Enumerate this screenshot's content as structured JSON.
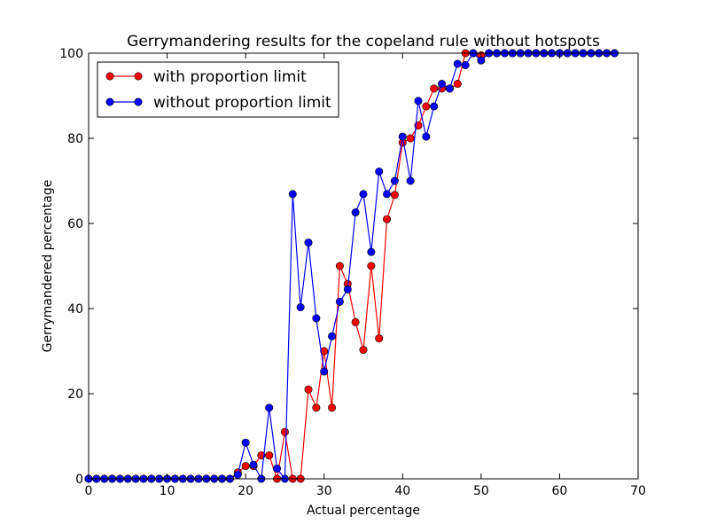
{
  "chart_data": {
    "type": "line",
    "title": "Gerrymandering results for the copeland rule without hotspots",
    "xlabel": "Actual percentage",
    "ylabel": "Gerrymandered percentage",
    "xlim": [
      0,
      70
    ],
    "ylim": [
      0,
      100
    ],
    "xticks": [
      "0",
      "10",
      "20",
      "30",
      "40",
      "50",
      "60",
      "70"
    ],
    "yticks": [
      "0",
      "20",
      "40",
      "60",
      "80",
      "100"
    ],
    "grid": false,
    "legend_position": "top-left",
    "x": [
      0,
      1,
      2,
      3,
      4,
      5,
      6,
      7,
      8,
      9,
      10,
      11,
      12,
      13,
      14,
      15,
      16,
      17,
      18,
      19,
      20,
      21,
      22,
      23,
      24,
      25,
      26,
      27,
      28,
      29,
      30,
      31,
      32,
      33,
      34,
      35,
      36,
      37,
      38,
      39,
      40,
      41,
      42,
      43,
      44,
      45,
      46,
      47,
      48,
      49,
      50,
      51,
      52,
      53,
      54,
      55,
      56,
      57,
      58,
      59,
      60,
      61,
      62,
      63,
      64,
      65,
      66,
      67
    ],
    "series": [
      {
        "name": "with proportion limit",
        "color": "#ff0000",
        "values": [
          0,
          0,
          0,
          0,
          0,
          0,
          0,
          0,
          0,
          0,
          0,
          0,
          0,
          0,
          0,
          0,
          0,
          0,
          0,
          1.5,
          3,
          3,
          5.5,
          5.5,
          0,
          11,
          0,
          0,
          21,
          16.7,
          30,
          16.7,
          50,
          45.8,
          36.8,
          30.3,
          50,
          33,
          61,
          66.7,
          79,
          80,
          83,
          87.5,
          91.7,
          91.7,
          91.7,
          92.8,
          100,
          100,
          99.5,
          100,
          100,
          100,
          100,
          100,
          100,
          100,
          100,
          100,
          100,
          100,
          100,
          100,
          100,
          100,
          100,
          100
        ]
      },
      {
        "name": "without proportion limit",
        "color": "#0000ff",
        "values": [
          0,
          0,
          0,
          0,
          0,
          0,
          0,
          0,
          0,
          0,
          0,
          0,
          0,
          0,
          0,
          0,
          0,
          0,
          0,
          1,
          8.5,
          3.3,
          0,
          16.7,
          2.4,
          0,
          66.9,
          40.3,
          55.5,
          37.7,
          25.2,
          33.5,
          41.6,
          44.5,
          62.6,
          66.9,
          53.3,
          72.2,
          66.9,
          70,
          80.4,
          70,
          88.8,
          80.4,
          87.5,
          92.8,
          91.7,
          97.5,
          97.2,
          100,
          98.3,
          100,
          100,
          100,
          100,
          100,
          100,
          100,
          100,
          100,
          100,
          100,
          100,
          100,
          100,
          100,
          100,
          100
        ]
      }
    ]
  }
}
